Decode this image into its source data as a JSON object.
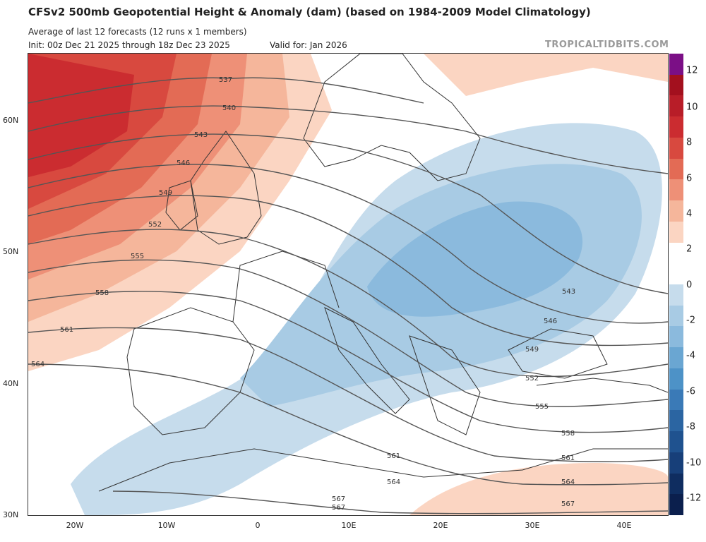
{
  "header": {
    "title": "CFSv2 500mb Geopotential Height & Anomaly (dam) (based on 1984-2009 Model Climatology)",
    "subtitle": "Average of last 12 forecasts (12 runs x 1 members)",
    "init": "Init: 00z Dec 21 2025 through 18z Dec 23 2025",
    "valid": "Valid for: Jan 2026",
    "brand": "TROPICALTIDBITS.COM"
  },
  "map": {
    "lat_labels": [
      "60N",
      "50N",
      "40N",
      "30N"
    ],
    "lon_labels": [
      "20W",
      "10W",
      "0",
      "10E",
      "20E",
      "30E",
      "40E"
    ],
    "contour_levels": [
      "537",
      "540",
      "543",
      "546",
      "549",
      "552",
      "555",
      "558",
      "561",
      "564",
      "567"
    ],
    "contour_labels_east": [
      "543",
      "546",
      "549",
      "552",
      "555",
      "558",
      "561",
      "564",
      "567"
    ],
    "contour_labels_mid": [
      "561",
      "564",
      "567"
    ]
  },
  "colorbar": {
    "labels": [
      "12",
      "10",
      "8",
      "6",
      "4",
      "2",
      "0",
      "-2",
      "-4",
      "-6",
      "-8",
      "-10",
      "-12"
    ],
    "colors": [
      "#7b0f86",
      "#a3101e",
      "#b81d28",
      "#cb2c30",
      "#d8493f",
      "#e36b55",
      "#ee9077",
      "#f5b69b",
      "#fbd5c2",
      "#ffffff",
      "#ffffff",
      "#c6dcec",
      "#a8cbe4",
      "#8bbadd",
      "#6aa6d2",
      "#4d92c7",
      "#3a7ab7",
      "#2b65a2",
      "#1f528f",
      "#173f79",
      "#0f2d60",
      "#0b1f4d"
    ]
  }
}
